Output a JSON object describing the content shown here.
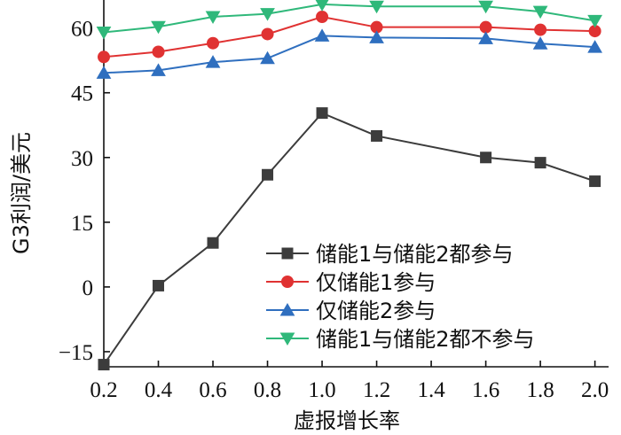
{
  "chart_data": {
    "type": "line",
    "title": "",
    "xlabel": "虚报增长率",
    "ylabel": "G3利润/美元",
    "x": [
      0.2,
      0.4,
      0.6,
      0.8,
      1.0,
      1.2,
      1.6,
      1.8,
      2.0
    ],
    "x_ticks": [
      "0.2",
      "0.4",
      "0.6",
      "0.8",
      "1.0",
      "1.2",
      "1.4",
      "1.6",
      "1.8",
      "2.0"
    ],
    "y_ticks": [
      "60",
      "45",
      "30",
      "15",
      "0",
      "−15"
    ],
    "xlim": [
      0.2,
      2.05
    ],
    "ylim": [
      -18.5,
      66.5
    ],
    "grid": false,
    "legend_position": "bottom-right",
    "series": [
      {
        "name": "储能1与储能2都参与",
        "marker": "square",
        "color": "#3c3c3c",
        "values": [
          -18.0,
          0.3,
          10.2,
          26.0,
          40.3,
          35.0,
          30.0,
          28.8,
          24.5
        ]
      },
      {
        "name": "仅储能1参与",
        "marker": "circle",
        "color": "#e03232",
        "values": [
          53.3,
          54.5,
          56.5,
          58.6,
          62.6,
          60.2,
          60.2,
          59.6,
          59.3
        ]
      },
      {
        "name": "仅储能2参与",
        "marker": "triangle-up",
        "color": "#2f6fbf",
        "values": [
          49.6,
          50.2,
          52.1,
          53.0,
          58.2,
          57.8,
          57.6,
          56.4,
          55.6
        ]
      },
      {
        "name": "储能1与储能2都不参与",
        "marker": "triangle-down",
        "color": "#2fb87a",
        "values": [
          59.0,
          60.3,
          62.6,
          63.3,
          65.5,
          65.0,
          65.0,
          63.8,
          61.7
        ]
      }
    ]
  }
}
